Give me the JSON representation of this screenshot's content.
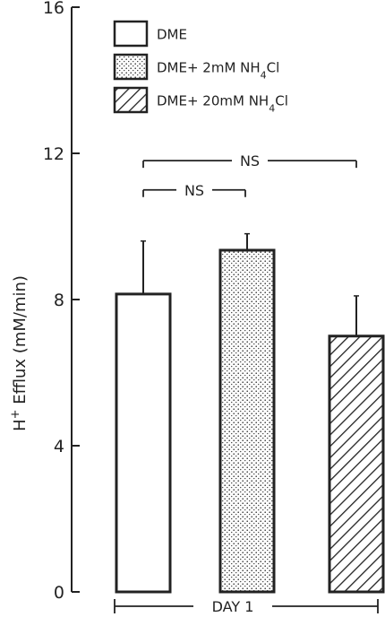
{
  "chart_data": {
    "type": "bar",
    "title": "",
    "ylabel": "H+ Efflux (mM/min)",
    "ylabel_parts": {
      "pre": "H",
      "sup": "+",
      "post": " Efflux (mM/min)"
    },
    "xlabel": "DAY 1",
    "ylim": [
      0,
      16
    ],
    "yticks": [
      "0",
      "4",
      "8",
      "12",
      "16"
    ],
    "grid": false,
    "legend_position": "top",
    "series": [
      {
        "name": "DME",
        "name_parts": {
          "pre": "DME",
          "sub": "",
          "post": ""
        },
        "value": 8.15,
        "error": 1.45,
        "pattern": "open"
      },
      {
        "name": "DME+ 2mM NH4Cl",
        "name_parts": {
          "pre": "DME+ 2mM NH",
          "sub": "4",
          "post": "Cl"
        },
        "value": 9.35,
        "error": 0.45,
        "pattern": "stippled"
      },
      {
        "name": "DME+ 20mM NH4Cl",
        "name_parts": {
          "pre": "DME+ 20mM NH",
          "sub": "4",
          "post": "Cl"
        },
        "value": 7.0,
        "error": 1.1,
        "pattern": "hatched"
      }
    ],
    "annotations": [
      {
        "text": "NS",
        "from_series": 0,
        "to_series": 2,
        "y": 11.8
      },
      {
        "text": "NS",
        "from_series": 0,
        "to_series": 1,
        "y": 11.0
      }
    ]
  }
}
